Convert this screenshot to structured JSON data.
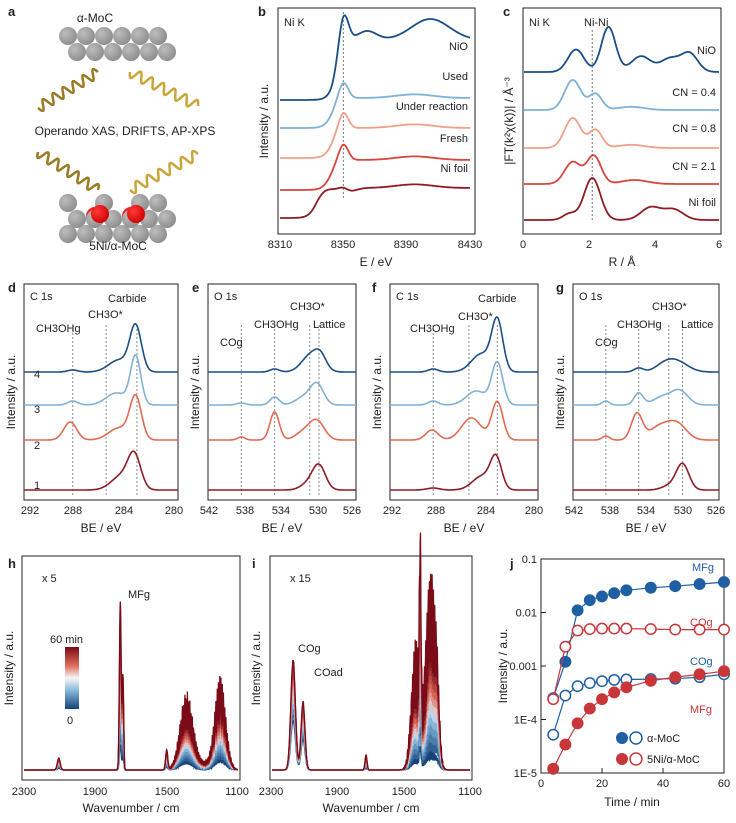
{
  "figure": {
    "panel_a": {
      "letter": "a",
      "top_label": "α-MoC",
      "middle_label": "Operando XAS, DRIFTS, AP-XPS",
      "bottom_label": "5Ni/α-MoC",
      "colors": {
        "atom_gray": "#9a9a9a",
        "atom_red": "#e00000",
        "wave_light": "#f3e39a",
        "wave_dark": "#8a6a18"
      }
    },
    "panel_b": {
      "letter": "b",
      "edge": "Ni K",
      "xlabel": "E / eV",
      "ylabel": "Intensity / a.u.",
      "xticks": [
        "8310",
        "8350",
        "8390",
        "8430"
      ],
      "series_labels": [
        "NiO",
        "Used",
        "Under reaction",
        "Fresh",
        "Ni foil"
      ]
    },
    "panel_c": {
      "letter": "c",
      "edge": "Ni K",
      "peak_label": "Ni-Ni",
      "xlabel": "R / Å",
      "ylabel": "|FT(k²χ(k))| / Å⁻³",
      "xticks": [
        "0",
        "2",
        "4",
        "6"
      ],
      "series_labels": [
        "NiO",
        "CN = 0.4",
        "CN = 0.8",
        "CN = 2.1",
        "Ni foil"
      ]
    },
    "panel_d": {
      "letter": "d",
      "core": "C 1s",
      "xlabel": "BE / eV",
      "ylabel": "Intensity / a.u.",
      "xticks": [
        "292",
        "288",
        "284",
        "280"
      ],
      "peak_labels": [
        "CH3OHg",
        "CH3O*",
        "Carbide"
      ],
      "trace_labels": [
        "4",
        "3",
        "2",
        "1"
      ]
    },
    "panel_e": {
      "letter": "e",
      "core": "O 1s",
      "xlabel": "BE / eV",
      "ylabel": "Intensity / a.u.",
      "xticks": [
        "542",
        "538",
        "534",
        "530",
        "526"
      ],
      "peak_labels": [
        "COg",
        "CH3OHg",
        "CH3O*",
        "Lattice"
      ]
    },
    "panel_f": {
      "letter": "f",
      "core": "C 1s",
      "xlabel": "BE / eV",
      "ylabel": "Intensity / a.u.",
      "xticks": [
        "292",
        "288",
        "284",
        "280"
      ],
      "peak_labels": [
        "CH3OHg",
        "CH3O*",
        "Carbide"
      ]
    },
    "panel_g": {
      "letter": "g",
      "core": "O 1s",
      "xlabel": "BE / eV",
      "ylabel": "Intensity / a.u.",
      "xticks": [
        "542",
        "538",
        "534",
        "530",
        "526"
      ],
      "peak_labels": [
        "COg",
        "CH3OHg",
        "CH3O*",
        "Lattice"
      ]
    },
    "panel_h": {
      "letter": "h",
      "scale": "x 5",
      "xlabel": "Wavenumber / cm",
      "ylabel": "Intensity / a.u.",
      "xticks": [
        "2300",
        "1900",
        "1500",
        "1100"
      ],
      "peak_label": "MFg",
      "colorbar_top": "60 min",
      "colorbar_bottom": "0"
    },
    "panel_i": {
      "letter": "i",
      "scale": "x 15",
      "xlabel": "Wavenumber / cm",
      "ylabel": "Intensity / a.u.",
      "xticks": [
        "2300",
        "1900",
        "1500",
        "1100"
      ],
      "peak_labels": [
        "COg",
        "COad"
      ]
    },
    "panel_j": {
      "letter": "j",
      "xlabel": "Time / min",
      "ylabel": "Intensity / a.u.",
      "legend": [
        "α-MoC",
        "5Ni/α-MoC"
      ],
      "series_labels": [
        {
          "text": "MFg",
          "color": "#1f5fa3"
        },
        {
          "text": "COg",
          "color": "#c9363a"
        },
        {
          "text": "COg",
          "color": "#1f5fa3"
        },
        {
          "text": "MFg",
          "color": "#c9363a"
        }
      ]
    }
  },
  "chart_data": [
    {
      "type": "line",
      "panel": "b",
      "title": "Ni K",
      "xlabel": "E / eV",
      "ylabel": "Intensity / a.u.",
      "xlim": [
        8310,
        8430
      ],
      "series": [
        {
          "name": "NiO",
          "color": "#1a4f86",
          "edge_eV": 8346,
          "white_line_eV": 8350
        },
        {
          "name": "Used",
          "color": "#7fb1d6",
          "edge_eV": 8343,
          "white_line_eV": 8350
        },
        {
          "name": "Under reaction",
          "color": "#f0a088",
          "edge_eV": 8343,
          "white_line_eV": 8350
        },
        {
          "name": "Fresh",
          "color": "#d6463c",
          "edge_eV": 8342,
          "white_line_eV": 8350
        },
        {
          "name": "Ni foil",
          "color": "#8e1c25",
          "edge_eV": 8333,
          "white_line_eV": 8350
        }
      ]
    },
    {
      "type": "line",
      "panel": "c",
      "title": "Ni K",
      "xlabel": "R / Å",
      "ylabel": "|FT(k²χ(k))| / Å⁻³",
      "xlim": [
        0,
        6
      ],
      "series": [
        {
          "name": "NiO",
          "color": "#1a4f86",
          "peaks_R": [
            1.6,
            2.6,
            3.6,
            5.0
          ]
        },
        {
          "name": "CN = 0.4",
          "color": "#7fb1d6",
          "peaks_R": [
            1.5,
            2.2
          ]
        },
        {
          "name": "CN = 0.8",
          "color": "#f0a088",
          "peaks_R": [
            1.5,
            2.2
          ]
        },
        {
          "name": "CN = 2.1",
          "color": "#d6463c",
          "peaks_R": [
            1.5,
            2.2
          ]
        },
        {
          "name": "Ni foil",
          "color": "#8e1c25",
          "peaks_R": [
            2.1,
            3.9,
            4.6
          ]
        }
      ]
    },
    {
      "type": "line",
      "panel": "d",
      "title": "C 1s",
      "xlim": [
        292,
        280
      ],
      "peak_positions_eV": [
        288.2,
        285.6,
        283.2
      ],
      "series": [
        {
          "name": "4",
          "color": "#1a4f86"
        },
        {
          "name": "3",
          "color": "#7fb1d6"
        },
        {
          "name": "2",
          "color": "#e26a52"
        },
        {
          "name": "1",
          "color": "#8e1c25"
        }
      ]
    },
    {
      "type": "line",
      "panel": "e",
      "title": "O 1s",
      "xlim": [
        542,
        526
      ],
      "peak_positions_eV": [
        538.4,
        534.8,
        531.0,
        530.0
      ],
      "series": [
        {
          "name": "4",
          "color": "#1a4f86"
        },
        {
          "name": "3",
          "color": "#7fb1d6"
        },
        {
          "name": "2",
          "color": "#e26a52"
        },
        {
          "name": "1",
          "color": "#8e1c25"
        }
      ]
    },
    {
      "type": "line",
      "panel": "f",
      "title": "C 1s",
      "xlim": [
        292,
        280
      ],
      "peak_positions_eV": [
        288.5,
        285.6,
        283.3
      ],
      "series": [
        {
          "name": "4",
          "color": "#1a4f86"
        },
        {
          "name": "3",
          "color": "#7fb1d6"
        },
        {
          "name": "2",
          "color": "#e26a52"
        },
        {
          "name": "1",
          "color": "#8e1c25"
        }
      ]
    },
    {
      "type": "line",
      "panel": "g",
      "title": "O 1s",
      "xlim": [
        542,
        526
      ],
      "peak_positions_eV": [
        538.4,
        534.8,
        531.5,
        530.0
      ],
      "series": [
        {
          "name": "4",
          "color": "#1a4f86"
        },
        {
          "name": "3",
          "color": "#7fb1d6"
        },
        {
          "name": "2",
          "color": "#e26a52"
        },
        {
          "name": "1",
          "color": "#8e1c25"
        }
      ]
    },
    {
      "type": "line",
      "panel": "h",
      "title": "x 5",
      "xlabel": "Wavenumber / cm",
      "xlim": [
        2300,
        1100
      ],
      "time_range_min": [
        0,
        60
      ],
      "bands_cm": [
        1760,
        1450,
        1390,
        1230,
        1180
      ]
    },
    {
      "type": "line",
      "panel": "i",
      "title": "x 15",
      "xlabel": "Wavenumber / cm",
      "xlim": [
        2300,
        1100
      ],
      "time_range_min": [
        0,
        60
      ],
      "bands_cm": [
        2170,
        2110,
        1720,
        1500,
        1400,
        1340,
        1300
      ]
    },
    {
      "type": "scatter",
      "panel": "j",
      "xlabel": "Time / min",
      "ylabel": "Intensity / a.u.",
      "yscale": "log",
      "xlim": [
        0,
        60
      ],
      "ylim": [
        1e-05,
        0.1
      ],
      "yticks": [
        "1E-5",
        "1E-4",
        "0.001",
        "0.01",
        "0.1"
      ],
      "xticks": [
        0,
        20,
        40,
        60
      ],
      "series": [
        {
          "name": "MFg (α-MoC)",
          "color": "#1f5fa3",
          "filled": true,
          "x": [
            4,
            8,
            12,
            16,
            20,
            24,
            28,
            36,
            44,
            52,
            60
          ],
          "y": [
            0.00025,
            0.0012,
            0.011,
            0.017,
            0.02,
            0.023,
            0.026,
            0.029,
            0.031,
            0.034,
            0.037
          ]
        },
        {
          "name": "COg (α-MoC)",
          "color": "#1f5fa3",
          "filled": false,
          "x": [
            4,
            8,
            12,
            16,
            20,
            24,
            28,
            36,
            44,
            52,
            60
          ],
          "y": [
            5.2e-05,
            0.00028,
            0.00042,
            0.00048,
            0.00052,
            0.00055,
            0.00056,
            0.00057,
            0.00058,
            0.00062,
            0.0007
          ]
        },
        {
          "name": "COg (5Ni/α-MoC)",
          "color": "#c9363a",
          "filled": false,
          "x": [
            4,
            8,
            12,
            16,
            20,
            24,
            28,
            36,
            44,
            52,
            60
          ],
          "y": [
            0.00024,
            0.0023,
            0.0046,
            0.0049,
            0.005,
            0.005,
            0.005,
            0.0049,
            0.0048,
            0.0048,
            0.0048
          ]
        },
        {
          "name": "MFg (5Ni/α-MoC)",
          "color": "#c9363a",
          "filled": true,
          "x": [
            4,
            8,
            12,
            16,
            20,
            24,
            28,
            36,
            44,
            52,
            60
          ],
          "y": [
            1.2e-05,
            3.4e-05,
            8.5e-05,
            0.00016,
            0.00024,
            0.00032,
            0.0004,
            0.00053,
            0.00062,
            0.0007,
            0.0008
          ]
        }
      ]
    }
  ]
}
